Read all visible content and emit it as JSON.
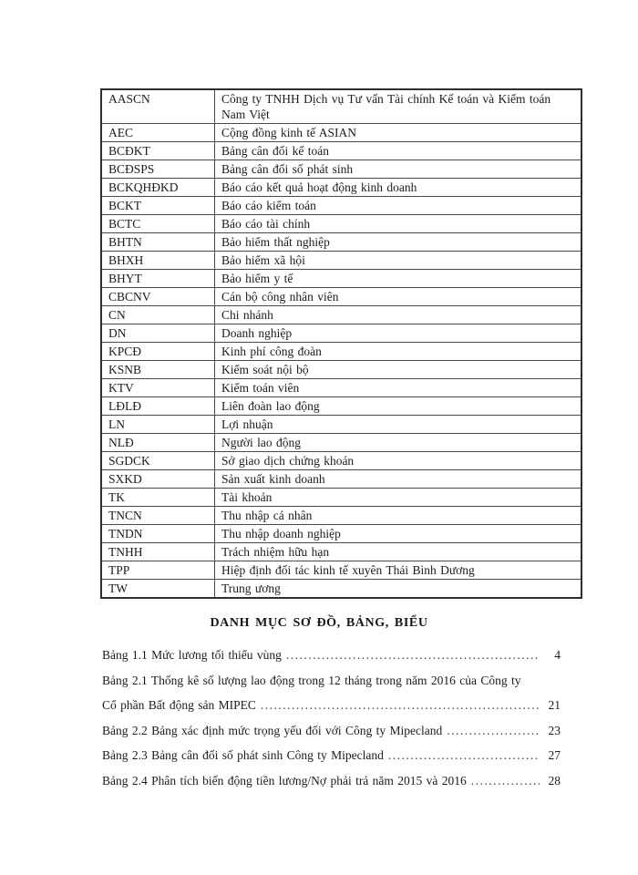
{
  "page": {
    "background_color": "#ffffff",
    "text_color": "#1b1b1b"
  },
  "abbreviation_table": {
    "rows": [
      {
        "abbr": "AASCN",
        "meaning": "Công ty TNHH Dịch vụ Tư vấn Tài chính Kế toán và Kiểm toán Nam Việt"
      },
      {
        "abbr": "AEC",
        "meaning": "Cộng đồng kinh tế ASIAN"
      },
      {
        "abbr": "BCĐKT",
        "meaning": "Bảng cân đối kế toán"
      },
      {
        "abbr": "BCĐSPS",
        "meaning": "Bảng cân đối số phát sinh"
      },
      {
        "abbr": "BCKQHĐKD",
        "meaning": "Báo cáo kết quả hoạt động kinh doanh"
      },
      {
        "abbr": "BCKT",
        "meaning": "Báo cáo kiểm toán"
      },
      {
        "abbr": "BCTC",
        "meaning": "Báo cáo tài chính"
      },
      {
        "abbr": "BHTN",
        "meaning": "Bảo hiểm thất nghiệp"
      },
      {
        "abbr": "BHXH",
        "meaning": "Bảo hiểm xã hội"
      },
      {
        "abbr": "BHYT",
        "meaning": "Bảo hiểm y tế"
      },
      {
        "abbr": "CBCNV",
        "meaning": "Cán bộ công nhân viên"
      },
      {
        "abbr": "CN",
        "meaning": "Chi nhánh"
      },
      {
        "abbr": "DN",
        "meaning": "Doanh nghiệp"
      },
      {
        "abbr": "KPCĐ",
        "meaning": "Kinh phí công đoàn"
      },
      {
        "abbr": "KSNB",
        "meaning": "Kiểm soát nội bộ"
      },
      {
        "abbr": "KTV",
        "meaning": "Kiểm toán viên"
      },
      {
        "abbr": "LĐLĐ",
        "meaning": "Liên đoàn lao động"
      },
      {
        "abbr": "LN",
        "meaning": "Lợi nhuận"
      },
      {
        "abbr": "NLĐ",
        "meaning": "Người lao động"
      },
      {
        "abbr": "SGDCK",
        "meaning": "Sở giao dịch chứng khoán"
      },
      {
        "abbr": "SXKD",
        "meaning": "Sản xuất kinh doanh"
      },
      {
        "abbr": "TK",
        "meaning": "Tài khoản"
      },
      {
        "abbr": "TNCN",
        "meaning": "Thu nhập cá nhân"
      },
      {
        "abbr": "TNDN",
        "meaning": "Thu nhập doanh nghiệp"
      },
      {
        "abbr": "TNHH",
        "meaning": "Trách nhiệm hữu hạn"
      },
      {
        "abbr": "TPP",
        "meaning": "Hiệp định đối tác kinh tế xuyên Thái Bình Dương"
      },
      {
        "abbr": "TW",
        "meaning": "Trung ương"
      }
    ]
  },
  "toc": {
    "heading": "DANH MỤC SƠ ĐỒ, BẢNG, BIỂU",
    "entries": [
      {
        "lines": [
          "Bảng 1.1 Mức lương tối thiểu vùng"
        ],
        "page": "4"
      },
      {
        "lines": [
          "Bảng 2.1 Thống kê số lượng lao động trong 12 tháng trong năm 2016 của Công ty",
          "Cổ phần Bất động sản MIPEC"
        ],
        "page": "21"
      },
      {
        "lines": [
          "Bảng 2.2 Bảng xác định mức trọng yếu đối với Công ty Mipecland"
        ],
        "page": "23"
      },
      {
        "lines": [
          "Bảng 2.3 Bảng cân đối số phát sinh Công ty Mipecland"
        ],
        "page": "27"
      },
      {
        "lines": [
          "Bảng 2.4 Phân tích biến động tiền lương/Nợ phải trả năm 2015 và 2016"
        ],
        "page": "28"
      }
    ]
  }
}
